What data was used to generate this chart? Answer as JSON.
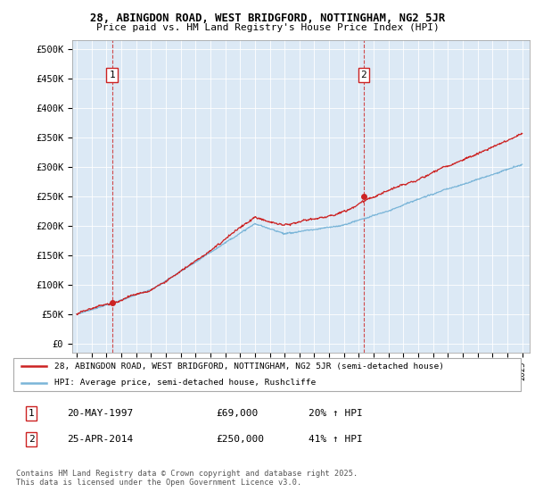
{
  "title_line1": "28, ABINGDON ROAD, WEST BRIDGFORD, NOTTINGHAM, NG2 5JR",
  "title_line2": "Price paid vs. HM Land Registry's House Price Index (HPI)",
  "yticks": [
    0,
    50000,
    100000,
    150000,
    200000,
    250000,
    300000,
    350000,
    400000,
    450000,
    500000
  ],
  "ytick_labels": [
    "£0",
    "£50K",
    "£100K",
    "£150K",
    "£200K",
    "£250K",
    "£300K",
    "£350K",
    "£400K",
    "£450K",
    "£500K"
  ],
  "xlim_start": 1994.7,
  "xlim_end": 2025.5,
  "ylim_min": -15000,
  "ylim_max": 515000,
  "sale1_date": 1997.38,
  "sale1_price": 69000,
  "sale2_date": 2014.32,
  "sale2_price": 250000,
  "hpi_color": "#7ab5d8",
  "price_color": "#cc2222",
  "vline_color": "#cc2222",
  "plot_bg": "#dce9f5",
  "legend_label1": "28, ABINGDON ROAD, WEST BRIDGFORD, NOTTINGHAM, NG2 5JR (semi-detached house)",
  "legend_label2": "HPI: Average price, semi-detached house, Rushcliffe",
  "footnote": "Contains HM Land Registry data © Crown copyright and database right 2025.\nThis data is licensed under the Open Government Licence v3.0.",
  "annotation1_label": "1",
  "annotation1_date_str": "20-MAY-1997",
  "annotation1_price_str": "£69,000",
  "annotation1_hpi_str": "20% ↑ HPI",
  "annotation2_label": "2",
  "annotation2_date_str": "25-APR-2014",
  "annotation2_price_str": "£250,000",
  "annotation2_hpi_str": "41% ↑ HPI"
}
